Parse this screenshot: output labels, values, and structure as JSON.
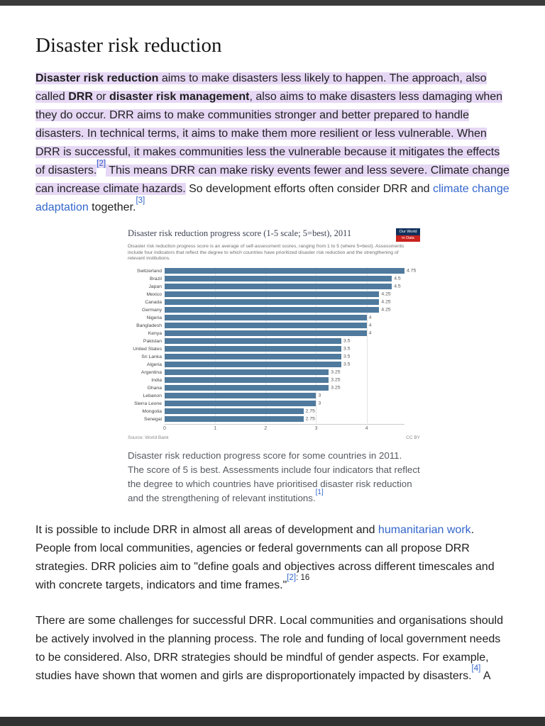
{
  "theme": {
    "highlight_color": "#e6d8f5",
    "link_color": "#3366cc",
    "bar_color": "#4f7a9d",
    "viewer_chrome_color": "#3a3a3a"
  },
  "article": {
    "title": "Disaster risk reduction",
    "intro": {
      "b1": "Disaster risk reduction",
      "t1": " aims to make disasters less likely to happen. The approach, also called ",
      "b2": "DRR",
      "t2": " or ",
      "b3": "disaster risk management",
      "t3": ", also aims to make disasters less damaging when they do occur. DRR aims to make communities stronger and better prepared to handle disasters. In technical terms, it aims to make them more resilient or less vulnerable. When DRR is successful, it makes communities less the vulnerable because it mitigates the effects of disasters.",
      "ref2": "[2]",
      "t4": " This means DRR can make risky events fewer and less severe. Climate change can increase climate hazards.",
      "t5": " So development efforts often consider DRR and ",
      "link1": "climate change adaptation",
      "t6": " together.",
      "ref3": "[3]"
    },
    "caption": {
      "text": "Disaster risk reduction progress score for some countries in 2011. The score of 5 is best. Assessments include four indicators that reflect the degree to which countries have prioritised disaster risk reduction and the strengthening of relevant institutions.",
      "ref": "[1]"
    },
    "para2": {
      "t1": "It is possible to include DRR in almost all areas of development and ",
      "link1": "humanitarian work",
      "t2": ". People from local communities, agencies or federal governments can all propose DRR strategies. DRR policies aim to \"define goals and objectives across different timescales and with concrete targets, indicators and time frames.\"",
      "ref": "[2]",
      "page": ": 16"
    },
    "para3": {
      "t1": "There are some challenges for successful DRR. Local communities and organisations should be actively involved in the planning process. The role and funding of local government needs to be considered. Also, DRR strategies should be mindful of gender aspects. For example, studies have shown that women and girls are disproportionately impacted by disasters.",
      "ref": "[4]",
      "t2": " A"
    }
  },
  "chart_data": {
    "type": "bar",
    "orientation": "horizontal",
    "title": "Disaster risk reduction progress score (1-5 scale; 5=best), 2011",
    "subtitle": "Disaster risk reduction progress score is an average of self-assessment scores, ranging from 1 to 5 (where 5=best). Assessments include four indicators that reflect the degree to which countries have prioritized disaster risk reduction and the strengthening of relevant institutions.",
    "categories": [
      "Switzerland",
      "Brazil",
      "Japan",
      "Mexico",
      "Canada",
      "Germany",
      "Nigeria",
      "Bangladesh",
      "Kenya",
      "Pakistan",
      "United States",
      "Sri Lanka",
      "Algeria",
      "Argentina",
      "India",
      "Ghana",
      "Lebanon",
      "Sierra Leone",
      "Mongolia",
      "Senegal"
    ],
    "values": [
      4.75,
      4.5,
      4.5,
      4.25,
      4.25,
      4.25,
      4,
      4,
      4,
      3.5,
      3.5,
      3.5,
      3.5,
      3.25,
      3.25,
      3.25,
      3,
      3,
      2.75,
      2.75
    ],
    "value_labels": [
      "4.75",
      "4.5",
      "4.5",
      "4.25",
      "4.25",
      "4.25",
      "4",
      "4",
      "4",
      "3.5",
      "3.5",
      "3.5",
      "3.5",
      "3.25",
      "3.25",
      "3.25",
      "3",
      "3",
      "2.75",
      "2.75"
    ],
    "xlim": [
      0,
      4.75
    ],
    "x_ticks": [
      0,
      1,
      2,
      3,
      4
    ],
    "grid": true,
    "legend": "none",
    "bar_color": "#4f7a9d",
    "source": "Source: World Bank",
    "license": "CC BY",
    "logo": {
      "line1": "Our World",
      "line2": "in Data"
    }
  }
}
